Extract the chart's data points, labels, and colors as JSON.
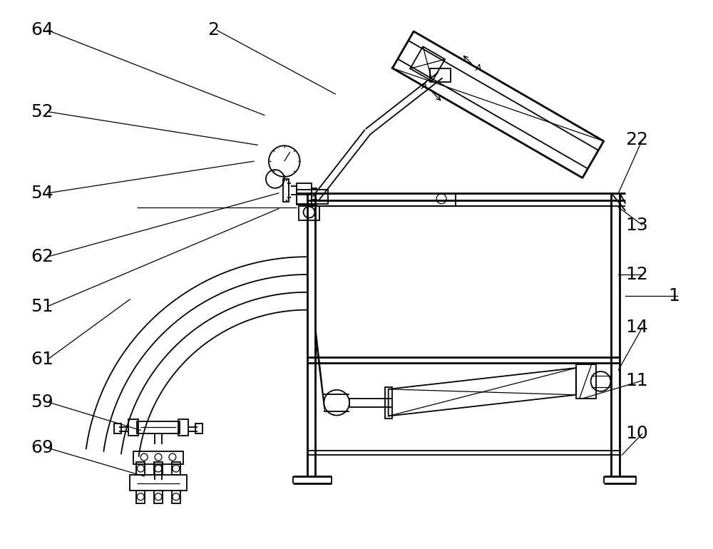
{
  "bg_color": "#ffffff",
  "line_color": "#000000",
  "fig_width": 10.0,
  "fig_height": 7.7,
  "font_size": 18,
  "lw_thick": 2.0,
  "lw_med": 1.3,
  "lw_thin": 0.9
}
